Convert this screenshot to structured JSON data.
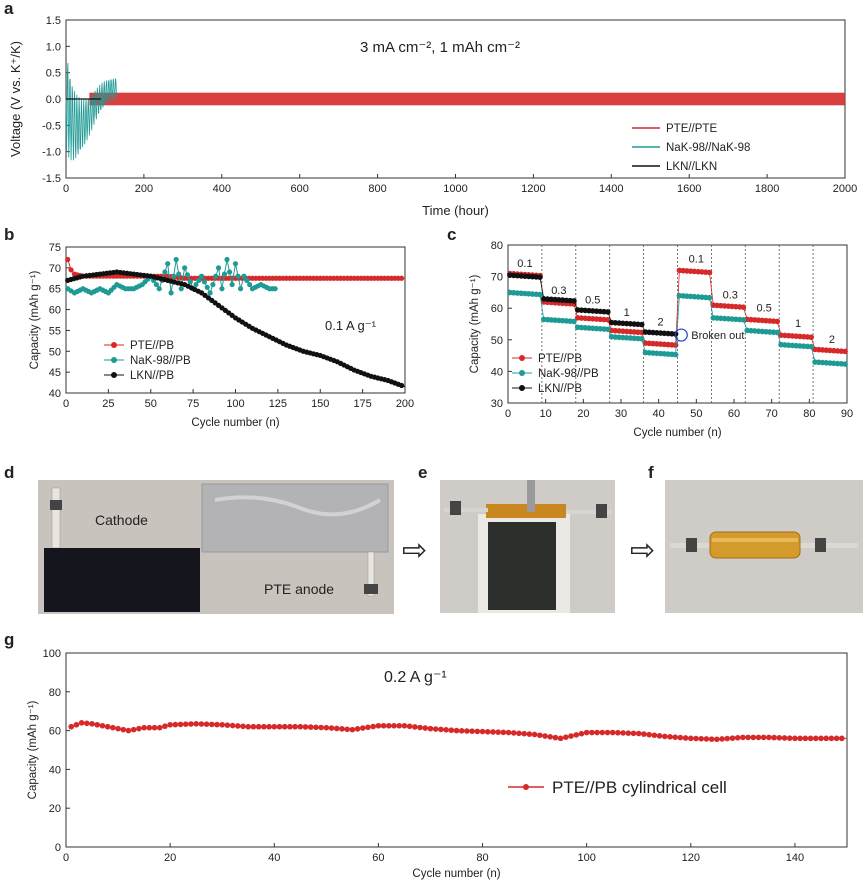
{
  "panel_labels": {
    "a": "a",
    "b": "b",
    "c": "c",
    "d": "d",
    "e": "e",
    "f": "f",
    "g": "g"
  },
  "photos": {
    "d_cathode_label": "Cathode",
    "d_anode_label": "PTE anode",
    "arrow_glyph": "⇨"
  },
  "colors": {
    "red": "#d62a2a",
    "teal": "#1f9a95",
    "black": "#111111",
    "photo_bg": "#c9c5c0"
  },
  "chart_data": [
    {
      "id": "a",
      "type": "line",
      "title": "3 mA cm⁻², 1 mAh cm⁻²",
      "xlabel": "Time (hour)",
      "ylabel": "Voltage (V vs. K⁺/K)",
      "xlim": [
        0,
        2000
      ],
      "ylim": [
        -1.5,
        1.5
      ],
      "xticks": [
        0,
        200,
        400,
        600,
        800,
        1000,
        1200,
        1400,
        1600,
        1800,
        2000
      ],
      "yticks": [
        -1.5,
        -1.0,
        -0.5,
        0.0,
        0.5,
        1.0,
        1.5
      ],
      "legend_position": "bottom-right",
      "series": [
        {
          "name": "PTE//PTE",
          "color": "#d62a2a",
          "kind": "band",
          "x_range": [
            0,
            2000
          ],
          "amplitude": 0.12
        },
        {
          "name": "NaK-98//NaK-98",
          "color": "#1f9a95",
          "kind": "noise",
          "x_range": [
            0,
            130
          ],
          "amplitude": 1.45
        },
        {
          "name": "LKN//LKN",
          "color": "#111111",
          "kind": "flat",
          "x_range": [
            0,
            90
          ],
          "value": 0.0
        }
      ]
    },
    {
      "id": "b",
      "type": "scatter",
      "xlabel": "Cycle number (n)",
      "ylabel": "Capacity (mAh g⁻¹)",
      "xlim": [
        0,
        200
      ],
      "ylim": [
        40,
        75
      ],
      "xticks": [
        0,
        25,
        50,
        75,
        100,
        125,
        150,
        175,
        200
      ],
      "yticks": [
        40,
        45,
        50,
        55,
        60,
        65,
        70,
        75
      ],
      "annotation": "0.1 A g⁻¹",
      "legend_position": "bottom-left",
      "series": [
        {
          "name": "PTE//PB",
          "color": "#d62a2a",
          "points": [
            [
              1,
              72
            ],
            [
              3,
              69.5
            ],
            [
              5,
              68.5
            ],
            [
              10,
              68
            ],
            [
              20,
              68
            ],
            [
              30,
              68
            ],
            [
              40,
              68
            ],
            [
              50,
              68
            ],
            [
              60,
              68
            ],
            [
              70,
              67.5
            ],
            [
              80,
              67.5
            ],
            [
              90,
              67.5
            ],
            [
              100,
              67.5
            ],
            [
              110,
              67.5
            ],
            [
              120,
              67.5
            ],
            [
              130,
              67.5
            ],
            [
              140,
              67.5
            ],
            [
              150,
              67.5
            ],
            [
              160,
              67.5
            ],
            [
              170,
              67.5
            ],
            [
              180,
              67.5
            ],
            [
              190,
              67.5
            ],
            [
              200,
              67.5
            ]
          ]
        },
        {
          "name": "NaK-98//PB",
          "color": "#1f9a95",
          "points": [
            [
              1,
              65
            ],
            [
              5,
              64
            ],
            [
              10,
              65
            ],
            [
              15,
              64
            ],
            [
              20,
              65
            ],
            [
              25,
              64
            ],
            [
              30,
              66
            ],
            [
              35,
              65
            ],
            [
              40,
              65
            ],
            [
              45,
              66
            ],
            [
              50,
              68
            ],
            [
              55,
              65
            ],
            [
              60,
              71
            ],
            [
              62,
              64
            ],
            [
              65,
              72
            ],
            [
              68,
              65
            ],
            [
              70,
              70
            ],
            [
              75,
              65
            ],
            [
              80,
              68
            ],
            [
              85,
              64
            ],
            [
              90,
              70
            ],
            [
              92,
              65
            ],
            [
              95,
              72
            ],
            [
              98,
              66
            ],
            [
              100,
              71
            ],
            [
              103,
              65
            ],
            [
              105,
              68
            ],
            [
              110,
              65
            ],
            [
              115,
              66
            ],
            [
              120,
              65
            ],
            [
              125,
              65
            ]
          ]
        },
        {
          "name": "LKN//PB",
          "color": "#111111",
          "points": [
            [
              1,
              67
            ],
            [
              10,
              68
            ],
            [
              20,
              68.5
            ],
            [
              30,
              69
            ],
            [
              40,
              68.5
            ],
            [
              50,
              68
            ],
            [
              60,
              67
            ],
            [
              70,
              66
            ],
            [
              80,
              64
            ],
            [
              90,
              61
            ],
            [
              100,
              58
            ],
            [
              110,
              55.5
            ],
            [
              120,
              53.5
            ],
            [
              130,
              51.5
            ],
            [
              140,
              50
            ],
            [
              150,
              49
            ],
            [
              160,
              47.5
            ],
            [
              170,
              45.5
            ],
            [
              180,
              44
            ],
            [
              190,
              43
            ],
            [
              200,
              41.5
            ]
          ]
        }
      ]
    },
    {
      "id": "c",
      "type": "scatter",
      "xlabel": "Cycle number (n)",
      "ylabel": "Capacity (mAh g⁻¹)",
      "xlim": [
        0,
        90
      ],
      "ylim": [
        30,
        80
      ],
      "xticks": [
        0,
        10,
        20,
        30,
        40,
        50,
        60,
        70,
        80,
        90
      ],
      "yticks": [
        30,
        40,
        50,
        60,
        70,
        80
      ],
      "legend_position": "bottom-left",
      "rate_labels": [
        {
          "text": "0.1",
          "x": 4.5,
          "y": 73
        },
        {
          "text": "0.3",
          "x": 13.5,
          "y": 64.5
        },
        {
          "text": "0.5",
          "x": 22.5,
          "y": 61.5
        },
        {
          "text": "1",
          "x": 31.5,
          "y": 57.5
        },
        {
          "text": "2",
          "x": 40.5,
          "y": 54.5
        },
        {
          "text": "0.1",
          "x": 50,
          "y": 74.5
        },
        {
          "text": "0.3",
          "x": 59,
          "y": 63
        },
        {
          "text": "0.5",
          "x": 68,
          "y": 59
        },
        {
          "text": "1",
          "x": 77,
          "y": 54
        },
        {
          "text": "2",
          "x": 86,
          "y": 49
        }
      ],
      "dividers": [
        9,
        18,
        27,
        36,
        45,
        54,
        63,
        72,
        81
      ],
      "annotation": "Broken out",
      "annotation_point": [
        46,
        51.5
      ],
      "series": [
        {
          "name": "PTE//PB",
          "color": "#d62a2a",
          "segments": [
            [
              0,
              9,
              71
            ],
            [
              9,
              18,
              62
            ],
            [
              18,
              27,
              57
            ],
            [
              27,
              36,
              53
            ],
            [
              36,
              45,
              49
            ],
            [
              45,
              54,
              72
            ],
            [
              54,
              63,
              61
            ],
            [
              63,
              72,
              56.5
            ],
            [
              72,
              81,
              51.5
            ],
            [
              81,
              90,
              47
            ]
          ]
        },
        {
          "name": "NaK-98//PB",
          "color": "#1f9a95",
          "segments": [
            [
              0,
              9,
              65
            ],
            [
              9,
              18,
              56.5
            ],
            [
              18,
              27,
              54
            ],
            [
              27,
              36,
              51
            ],
            [
              36,
              45,
              46
            ],
            [
              45,
              54,
              64
            ],
            [
              54,
              63,
              57
            ],
            [
              63,
              72,
              53
            ],
            [
              72,
              81,
              48.5
            ],
            [
              81,
              90,
              43
            ]
          ]
        },
        {
          "name": "LKN//PB",
          "color": "#111111",
          "segments": [
            [
              0,
              9,
              70.5
            ],
            [
              9,
              18,
              63
            ],
            [
              18,
              27,
              59.5
            ],
            [
              27,
              36,
              55.5
            ],
            [
              36,
              45,
              52.5
            ]
          ]
        }
      ]
    },
    {
      "id": "g",
      "type": "line",
      "xlabel": "Cycle number (n)",
      "ylabel": "Capacity (mAh g⁻¹)",
      "xlim": [
        0,
        150
      ],
      "ylim": [
        0,
        100
      ],
      "xticks": [
        0,
        20,
        40,
        60,
        80,
        100,
        120,
        140
      ],
      "yticks": [
        0,
        20,
        40,
        60,
        80,
        100
      ],
      "annotation": "0.2 A g⁻¹",
      "legend_position": "bottom-right",
      "series": [
        {
          "name": "PTE//PB cylindrical cell",
          "color": "#d62a2a",
          "points": [
            [
              1,
              62
            ],
            [
              3,
              64
            ],
            [
              5,
              63.5
            ],
            [
              8,
              62
            ],
            [
              12,
              60
            ],
            [
              15,
              61.5
            ],
            [
              18,
              61.5
            ],
            [
              20,
              63
            ],
            [
              25,
              63.5
            ],
            [
              30,
              63
            ],
            [
              35,
              62
            ],
            [
              40,
              62
            ],
            [
              45,
              62
            ],
            [
              50,
              61.5
            ],
            [
              55,
              60.5
            ],
            [
              60,
              62.5
            ],
            [
              65,
              62.5
            ],
            [
              70,
              61
            ],
            [
              75,
              60
            ],
            [
              80,
              59.5
            ],
            [
              85,
              59
            ],
            [
              90,
              58
            ],
            [
              95,
              56
            ],
            [
              100,
              59
            ],
            [
              105,
              59
            ],
            [
              110,
              58.5
            ],
            [
              115,
              57
            ],
            [
              120,
              56
            ],
            [
              125,
              55.5
            ],
            [
              130,
              56.5
            ],
            [
              135,
              56.5
            ],
            [
              140,
              56
            ],
            [
              145,
              56
            ],
            [
              150,
              56
            ]
          ]
        }
      ]
    }
  ]
}
